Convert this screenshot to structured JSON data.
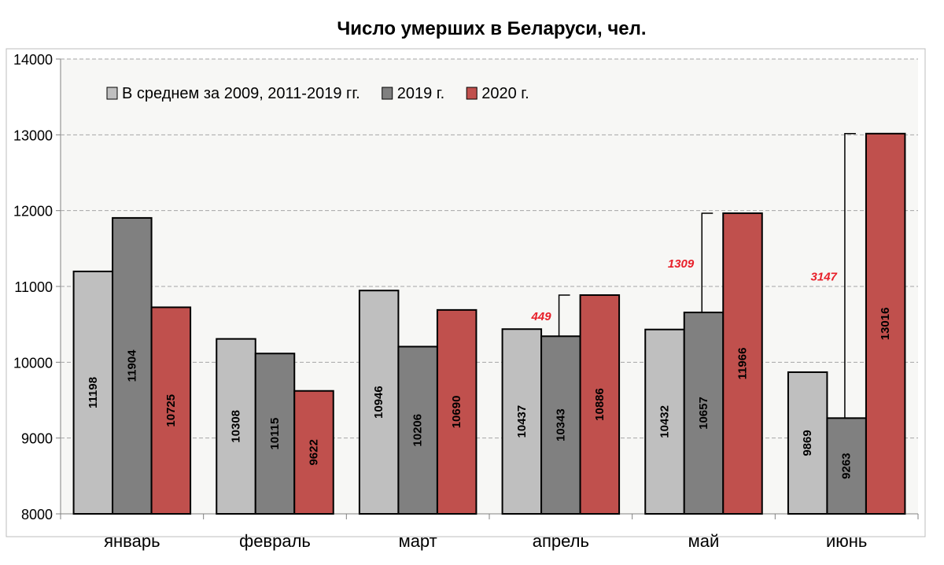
{
  "chart_data": {
    "type": "bar",
    "title": "Число умерших в Беларуси, чел.",
    "xlabel": "",
    "ylabel": "",
    "ylim": [
      8000,
      14000
    ],
    "yticks": [
      8000,
      9000,
      10000,
      11000,
      12000,
      13000,
      14000
    ],
    "grid": true,
    "legend_position": "top-left",
    "categories": [
      "январь",
      "февраль",
      "март",
      "апрель",
      "май",
      "июнь"
    ],
    "series": [
      {
        "name": "В среднем за 2009, 2011-2019 гг.",
        "color": "#bfbfbf",
        "values": [
          11198,
          10308,
          10946,
          10437,
          10432,
          9869
        ]
      },
      {
        "name": "2019 г.",
        "color": "#808080",
        "values": [
          11904,
          10115,
          10206,
          10343,
          10657,
          9263
        ]
      },
      {
        "name": "2020 г.",
        "color": "#c0504d",
        "values": [
          10725,
          9622,
          10690,
          10886,
          11966,
          13016
        ]
      }
    ],
    "annotations": [
      {
        "category": "апрель",
        "text": "449",
        "from_series": 1,
        "to_series": 2,
        "color": "#e8202a"
      },
      {
        "category": "май",
        "text": "1309",
        "from_series": 1,
        "to_series": 2,
        "color": "#e8202a"
      },
      {
        "category": "июнь",
        "text": "3147",
        "from_series": 1,
        "to_series": 2,
        "color": "#e8202a"
      }
    ]
  }
}
